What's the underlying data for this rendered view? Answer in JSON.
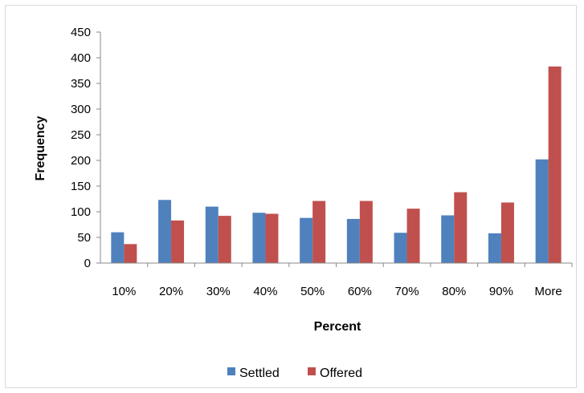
{
  "chart_data": {
    "type": "bar",
    "title": "",
    "xlabel": "Percent",
    "ylabel": "Frequency",
    "ylim": [
      0,
      450
    ],
    "yticks": [
      0,
      50,
      100,
      150,
      200,
      250,
      300,
      350,
      400,
      450
    ],
    "categories": [
      "10%",
      "20%",
      "30%",
      "40%",
      "50%",
      "60%",
      "70%",
      "80%",
      "90%",
      "More"
    ],
    "series": [
      {
        "name": "Settled",
        "color": "#4f81bd",
        "values": [
          60,
          123,
          110,
          98,
          88,
          86,
          59,
          93,
          58,
          202
        ]
      },
      {
        "name": "Offered",
        "color": "#c0504d",
        "values": [
          37,
          83,
          92,
          96,
          121,
          121,
          106,
          138,
          118,
          383
        ]
      }
    ],
    "grid": false,
    "legend_position": "bottom"
  }
}
